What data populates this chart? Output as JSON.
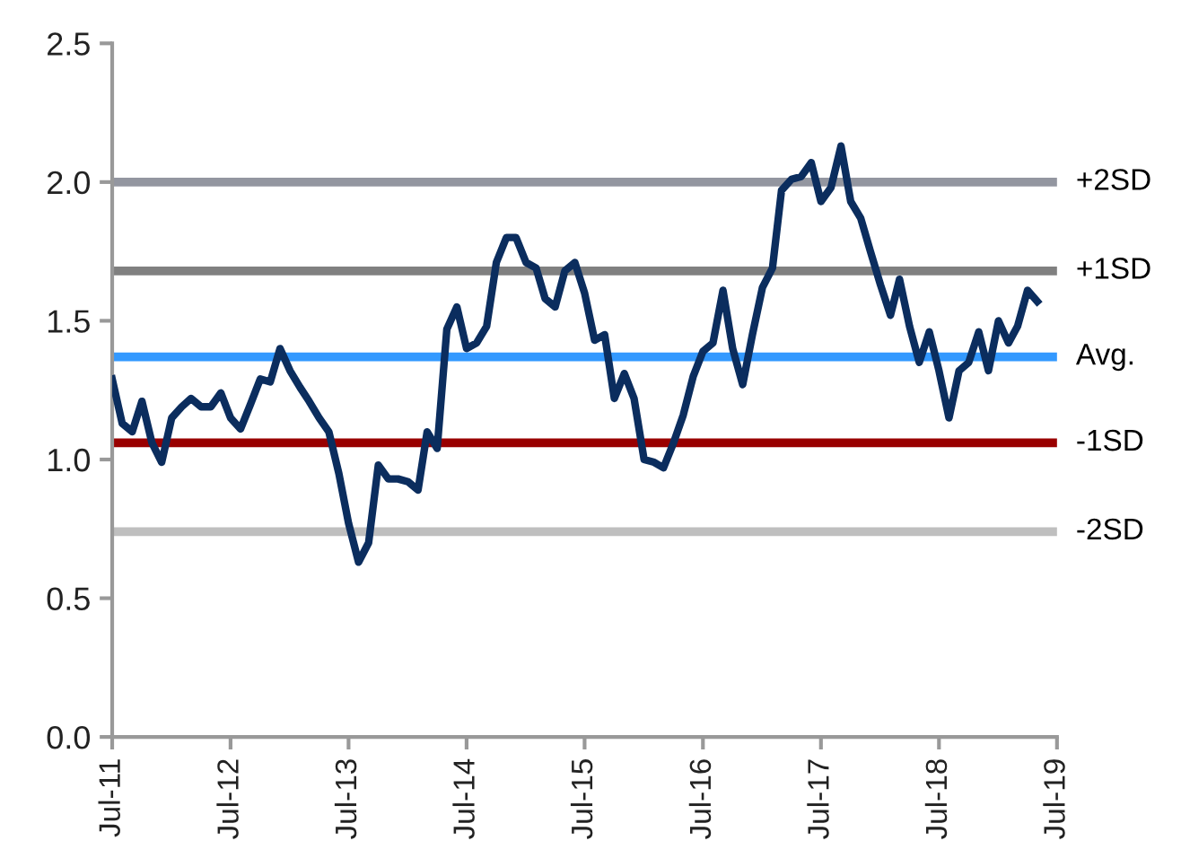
{
  "chart_data": {
    "type": "line",
    "x": [
      "2011-07",
      "2011-08",
      "2011-09",
      "2011-10",
      "2011-11",
      "2011-12",
      "2012-01",
      "2012-02",
      "2012-03",
      "2012-04",
      "2012-05",
      "2012-06",
      "2012-07",
      "2012-08",
      "2012-09",
      "2012-10",
      "2012-11",
      "2012-12",
      "2013-01",
      "2013-02",
      "2013-03",
      "2013-04",
      "2013-05",
      "2013-06",
      "2013-07",
      "2013-08",
      "2013-09",
      "2013-10",
      "2013-11",
      "2013-12",
      "2014-01",
      "2014-02",
      "2014-03",
      "2014-04",
      "2014-05",
      "2014-06",
      "2014-07",
      "2014-08",
      "2014-09",
      "2014-10",
      "2014-11",
      "2014-12",
      "2015-01",
      "2015-02",
      "2015-03",
      "2015-04",
      "2015-05",
      "2015-06",
      "2015-07",
      "2015-08",
      "2015-09",
      "2015-10",
      "2015-11",
      "2015-12",
      "2016-01",
      "2016-02",
      "2016-03",
      "2016-04",
      "2016-05",
      "2016-06",
      "2016-07",
      "2016-08",
      "2016-09",
      "2016-10",
      "2016-11",
      "2016-12",
      "2017-01",
      "2017-02",
      "2017-03",
      "2017-04",
      "2017-05",
      "2017-06",
      "2017-07",
      "2017-08",
      "2017-09",
      "2017-10",
      "2017-11",
      "2017-12",
      "2018-01",
      "2018-02",
      "2018-03",
      "2018-04",
      "2018-05",
      "2018-06",
      "2018-07",
      "2018-08",
      "2018-09",
      "2018-10",
      "2018-11",
      "2018-12",
      "2019-01",
      "2019-02",
      "2019-03",
      "2019-04",
      "2019-05"
    ],
    "series": [
      {
        "color": "#0b2d5e",
        "values": [
          1.29,
          1.13,
          1.1,
          1.21,
          1.06,
          0.99,
          1.15,
          1.19,
          1.22,
          1.19,
          1.19,
          1.24,
          1.15,
          1.11,
          1.2,
          1.29,
          1.28,
          1.4,
          1.32,
          1.26,
          1.21,
          1.15,
          1.1,
          0.95,
          0.77,
          0.63,
          0.7,
          0.98,
          0.93,
          0.93,
          0.92,
          0.89,
          1.1,
          1.04,
          1.47,
          1.55,
          1.4,
          1.42,
          1.48,
          1.71,
          1.8,
          1.8,
          1.71,
          1.69,
          1.58,
          1.55,
          1.68,
          1.71,
          1.6,
          1.43,
          1.45,
          1.22,
          1.31,
          1.22,
          1.0,
          0.99,
          0.97,
          1.06,
          1.16,
          1.3,
          1.39,
          1.42,
          1.61,
          1.4,
          1.27,
          1.45,
          1.62,
          1.69,
          1.97,
          2.01,
          2.02,
          2.07,
          1.93,
          1.98,
          2.13,
          1.93,
          1.87,
          1.75,
          1.63,
          1.52,
          1.65,
          1.48,
          1.35,
          1.46,
          1.32,
          1.15,
          1.32,
          1.35,
          1.46,
          1.32,
          1.5,
          1.42,
          1.48,
          1.61,
          1.57
        ]
      }
    ],
    "xlim": [
      "2011-07",
      "2019-07"
    ],
    "xticks": [
      {
        "value": "2011-07",
        "label": "Jul-11"
      },
      {
        "value": "2012-07",
        "label": "Jul-12"
      },
      {
        "value": "2013-07",
        "label": "Jul-13"
      },
      {
        "value": "2014-07",
        "label": "Jul-14"
      },
      {
        "value": "2015-07",
        "label": "Jul-15"
      },
      {
        "value": "2016-07",
        "label": "Jul-16"
      },
      {
        "value": "2017-07",
        "label": "Jul-17"
      },
      {
        "value": "2018-07",
        "label": "Jul-18"
      },
      {
        "value": "2019-07",
        "label": "Jul-19"
      }
    ],
    "ylim": [
      0,
      2.5
    ],
    "yticks": [
      {
        "value": 0,
        "label": "0.0"
      },
      {
        "value": 0.5,
        "label": "0.5"
      },
      {
        "value": 1,
        "label": "1.0"
      },
      {
        "value": 1.5,
        "label": "1.5"
      },
      {
        "value": 2,
        "label": "2.0"
      },
      {
        "value": 2.5,
        "label": "2.5"
      }
    ],
    "ref_lines": [
      {
        "axis": "y",
        "value": 2.0,
        "label": "+2SD",
        "color": "#9396a0"
      },
      {
        "axis": "y",
        "value": 1.68,
        "label": "+1SD",
        "color": "#808080"
      },
      {
        "axis": "y",
        "value": 1.37,
        "label": "Avg.",
        "color": "#3399ff"
      },
      {
        "axis": "y",
        "value": 1.06,
        "label": "-1SD",
        "color": "#990000"
      },
      {
        "axis": "y",
        "value": 0.74,
        "label": "-2SD",
        "color": "#bfbfbf"
      }
    ],
    "grid": false,
    "legend": false,
    "marker": "none",
    "line_style": "solid"
  }
}
